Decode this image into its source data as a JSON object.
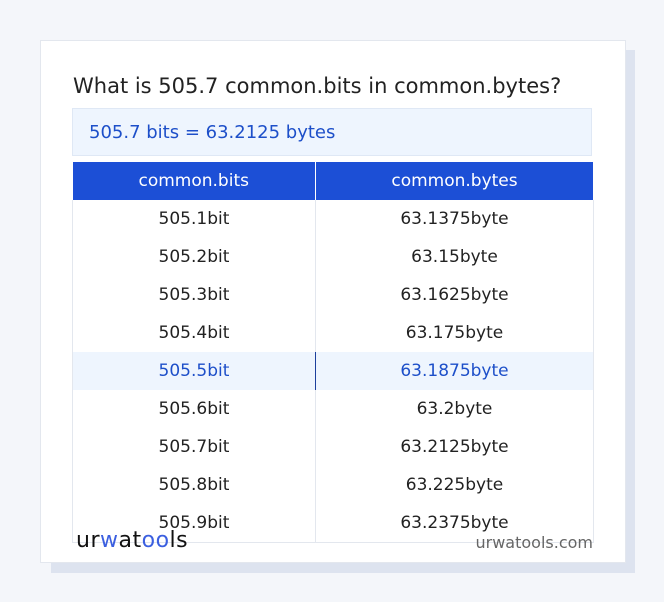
{
  "question": "What is 505.7 common.bits in common.bytes?",
  "answer": "505.7 bits = 63.2125 bytes",
  "table": {
    "headers": [
      "common.bits",
      "common.bytes"
    ],
    "rows": [
      [
        "505.1bit",
        "63.1375byte"
      ],
      [
        "505.2bit",
        "63.15byte"
      ],
      [
        "505.3bit",
        "63.1625byte"
      ],
      [
        "505.4bit",
        "63.175byte"
      ],
      [
        "505.5bit",
        "63.1875byte"
      ],
      [
        "505.6bit",
        "63.2byte"
      ],
      [
        "505.7bit",
        "63.2125byte"
      ],
      [
        "505.8bit",
        "63.225byte"
      ],
      [
        "505.9bit",
        "63.2375byte"
      ]
    ],
    "highlighted_row": 4
  },
  "footer": {
    "logo": "urwatools",
    "site": "urwatools.com"
  },
  "colors": {
    "accent": "#1c4fd6",
    "highlight_bg": "#eef5fe"
  }
}
